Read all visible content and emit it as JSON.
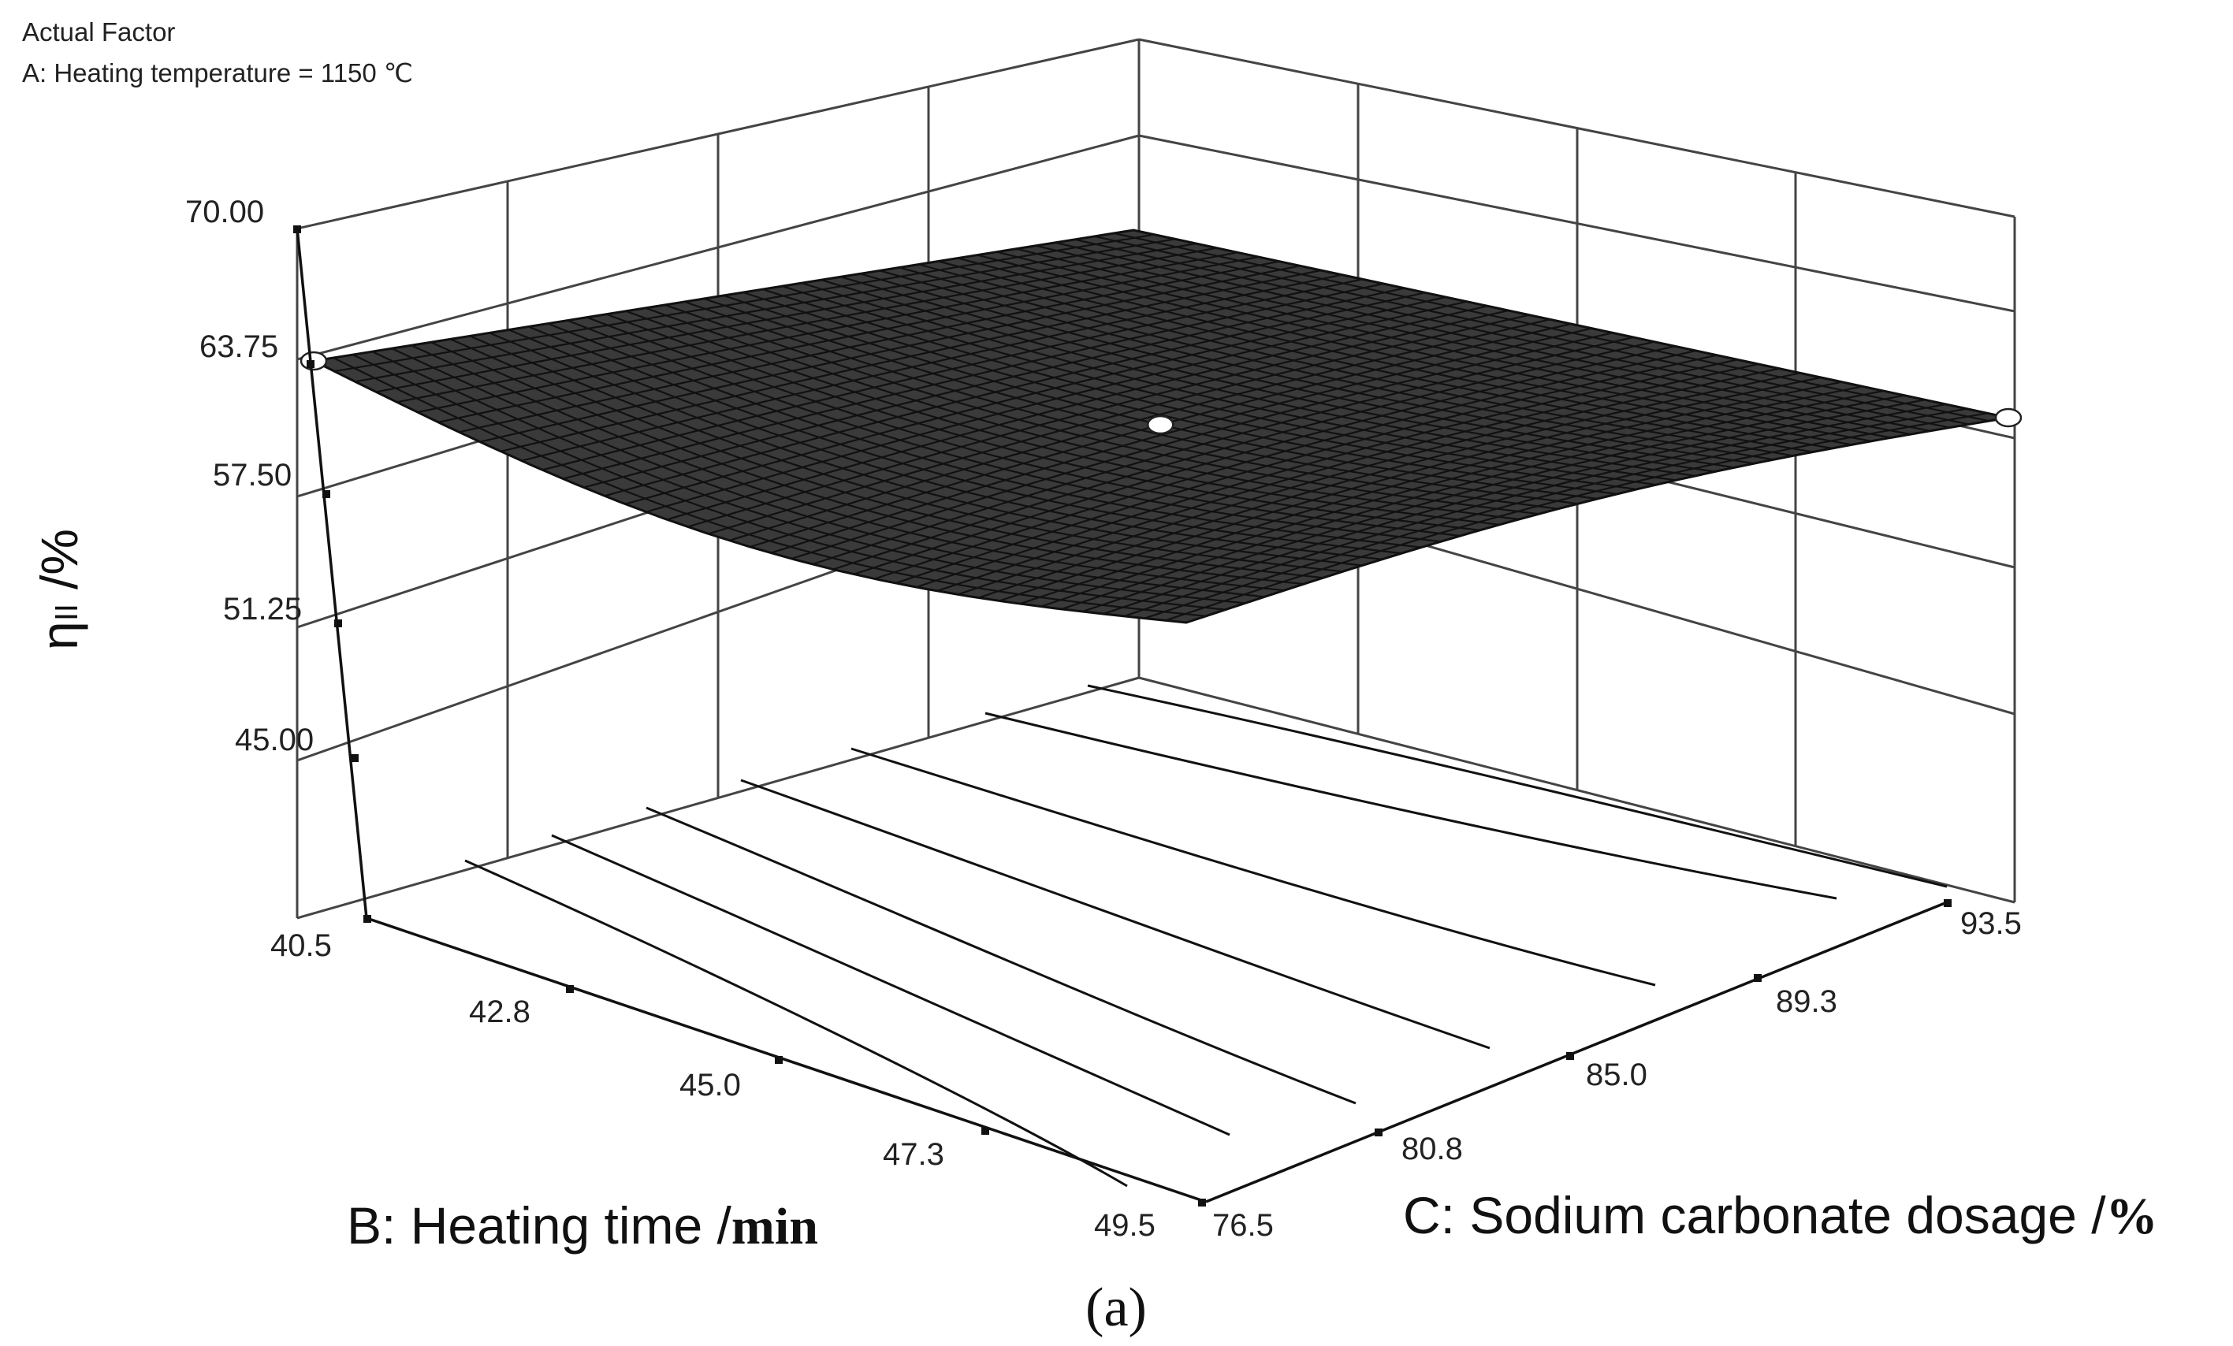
{
  "header": {
    "line1": "Actual Factor",
    "line2": "A: Heating temperature = 1150 ℃"
  },
  "axes": {
    "z_label": "ηₗₗ /%",
    "b_label_main": "B: Heating time /",
    "b_label_unit": "min",
    "c_label_main": "C: Sodium carbonate dosage /",
    "c_label_unit": "%",
    "z_ticks": [
      "70.00",
      "63.75",
      "57.50",
      "51.25",
      "45.00"
    ],
    "b_ticks": [
      "40.5",
      "42.8",
      "45.0",
      "47.3",
      "49.5"
    ],
    "c_ticks": [
      "76.5",
      "80.8",
      "85.0",
      "89.3",
      "93.5"
    ]
  },
  "caption": "(a)",
  "chart_data": {
    "type": "surface",
    "title": "",
    "fixed_factor": "A: Heating temperature = 1150 ℃",
    "x_axis": {
      "label": "B: Heating time /min",
      "range": [
        40.5,
        49.5
      ],
      "ticks": [
        40.5,
        42.8,
        45.0,
        47.3,
        49.5
      ]
    },
    "y_axis": {
      "label": "C: Sodium carbonate dosage /%",
      "range": [
        76.5,
        93.5
      ],
      "ticks": [
        76.5,
        80.8,
        85.0,
        89.3,
        93.5
      ]
    },
    "z_axis": {
      "label": "η /%",
      "range": [
        45.0,
        70.0
      ],
      "ticks": [
        45.0,
        51.25,
        57.5,
        63.75,
        70.0
      ]
    },
    "corner_values": [
      {
        "B": 40.5,
        "C": 76.5,
        "z": 63.5
      },
      {
        "B": 49.5,
        "C": 76.5,
        "z": 53.0
      },
      {
        "B": 40.5,
        "C": 93.5,
        "z": 64.5
      },
      {
        "B": 49.5,
        "C": 93.5,
        "z": 61.5
      }
    ],
    "design_points": [
      {
        "B": 40.5,
        "C": 76.5,
        "z": 63.75
      },
      {
        "B": 45.0,
        "C": 85.0,
        "z": 59.0
      },
      {
        "B": 49.5,
        "C": 93.5,
        "z": 61.5
      }
    ],
    "grid": true
  }
}
